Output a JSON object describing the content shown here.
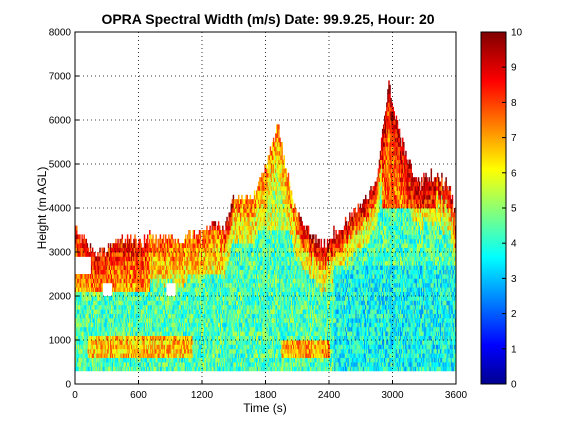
{
  "chart_data": {
    "type": "heatmap",
    "title": "OPRA Spectral Width (m/s)  Date: 99.9.25, Hour: 20",
    "xlabel": "Time (s)",
    "ylabel": "Height (m AGL)",
    "xlim": [
      0,
      3600
    ],
    "ylim": [
      0,
      8000
    ],
    "x_ticks": [
      "0",
      "600",
      "1200",
      "1800",
      "2400",
      "3000",
      "3600"
    ],
    "y_ticks": [
      "0",
      "1000",
      "2000",
      "3000",
      "4000",
      "5000",
      "6000",
      "7000",
      "8000"
    ],
    "grid": true,
    "colorbar": {
      "label": "",
      "range": [
        0,
        10
      ],
      "ticks": [
        "0",
        "1",
        "2",
        "3",
        "4",
        "5",
        "6",
        "7",
        "8",
        "9",
        "10"
      ],
      "colormap": "jet"
    },
    "coverage": {
      "bottom_m": 300,
      "top_profile": [
        [
          0,
          3500
        ],
        [
          60,
          3200
        ],
        [
          120,
          3100
        ],
        [
          200,
          2900
        ],
        [
          300,
          3000
        ],
        [
          400,
          3200
        ],
        [
          500,
          3300
        ],
        [
          600,
          3100
        ],
        [
          700,
          3300
        ],
        [
          800,
          3200
        ],
        [
          900,
          3300
        ],
        [
          1000,
          3200
        ],
        [
          1100,
          3400
        ],
        [
          1200,
          3300
        ],
        [
          1300,
          3600
        ],
        [
          1400,
          3400
        ],
        [
          1500,
          4200
        ],
        [
          1600,
          4100
        ],
        [
          1700,
          4300
        ],
        [
          1780,
          4800
        ],
        [
          1860,
          5300
        ],
        [
          1920,
          5900
        ],
        [
          1980,
          5000
        ],
        [
          2050,
          4200
        ],
        [
          2150,
          3600
        ],
        [
          2250,
          3300
        ],
        [
          2350,
          3100
        ],
        [
          2450,
          3400
        ],
        [
          2550,
          3600
        ],
        [
          2650,
          3900
        ],
        [
          2750,
          4100
        ],
        [
          2850,
          4600
        ],
        [
          2920,
          6000
        ],
        [
          2960,
          6800
        ],
        [
          3020,
          6100
        ],
        [
          3080,
          5500
        ],
        [
          3150,
          5000
        ],
        [
          3250,
          4500
        ],
        [
          3350,
          4700
        ],
        [
          3450,
          4600
        ],
        [
          3550,
          4400
        ],
        [
          3600,
          3600
        ]
      ],
      "gaps": [
        {
          "t": [
            260,
            340
          ],
          "h": [
            2000,
            2200
          ]
        },
        {
          "t": [
            860,
            940
          ],
          "h": [
            2000,
            2200
          ]
        },
        {
          "t": [
            0,
            140
          ],
          "h": [
            2450,
            2800
          ]
        }
      ]
    },
    "features": [
      {
        "t": [
          0,
          700
        ],
        "h": [
          2100,
          3500
        ],
        "value": 8.5
      },
      {
        "t": [
          700,
          1400
        ],
        "h": [
          2500,
          3400
        ],
        "value": 7.0
      },
      {
        "t": [
          0,
          3600
        ],
        "h": [
          300,
          2000
        ],
        "value": 4.5
      },
      {
        "t": [
          120,
          1100
        ],
        "h": [
          600,
          1000
        ],
        "value": 8.0
      },
      {
        "t": [
          1950,
          2400
        ],
        "h": [
          600,
          900
        ],
        "value": 8.5
      },
      {
        "t": [
          2450,
          3600
        ],
        "h": [
          300,
          2600
        ],
        "value": 3.5
      },
      {
        "t": [
          2900,
          3400
        ],
        "h": [
          4000,
          6800
        ],
        "value": 9.5
      },
      {
        "t": [
          1500,
          2100
        ],
        "h": [
          3500,
          6000
        ],
        "value": 6.5
      }
    ]
  }
}
